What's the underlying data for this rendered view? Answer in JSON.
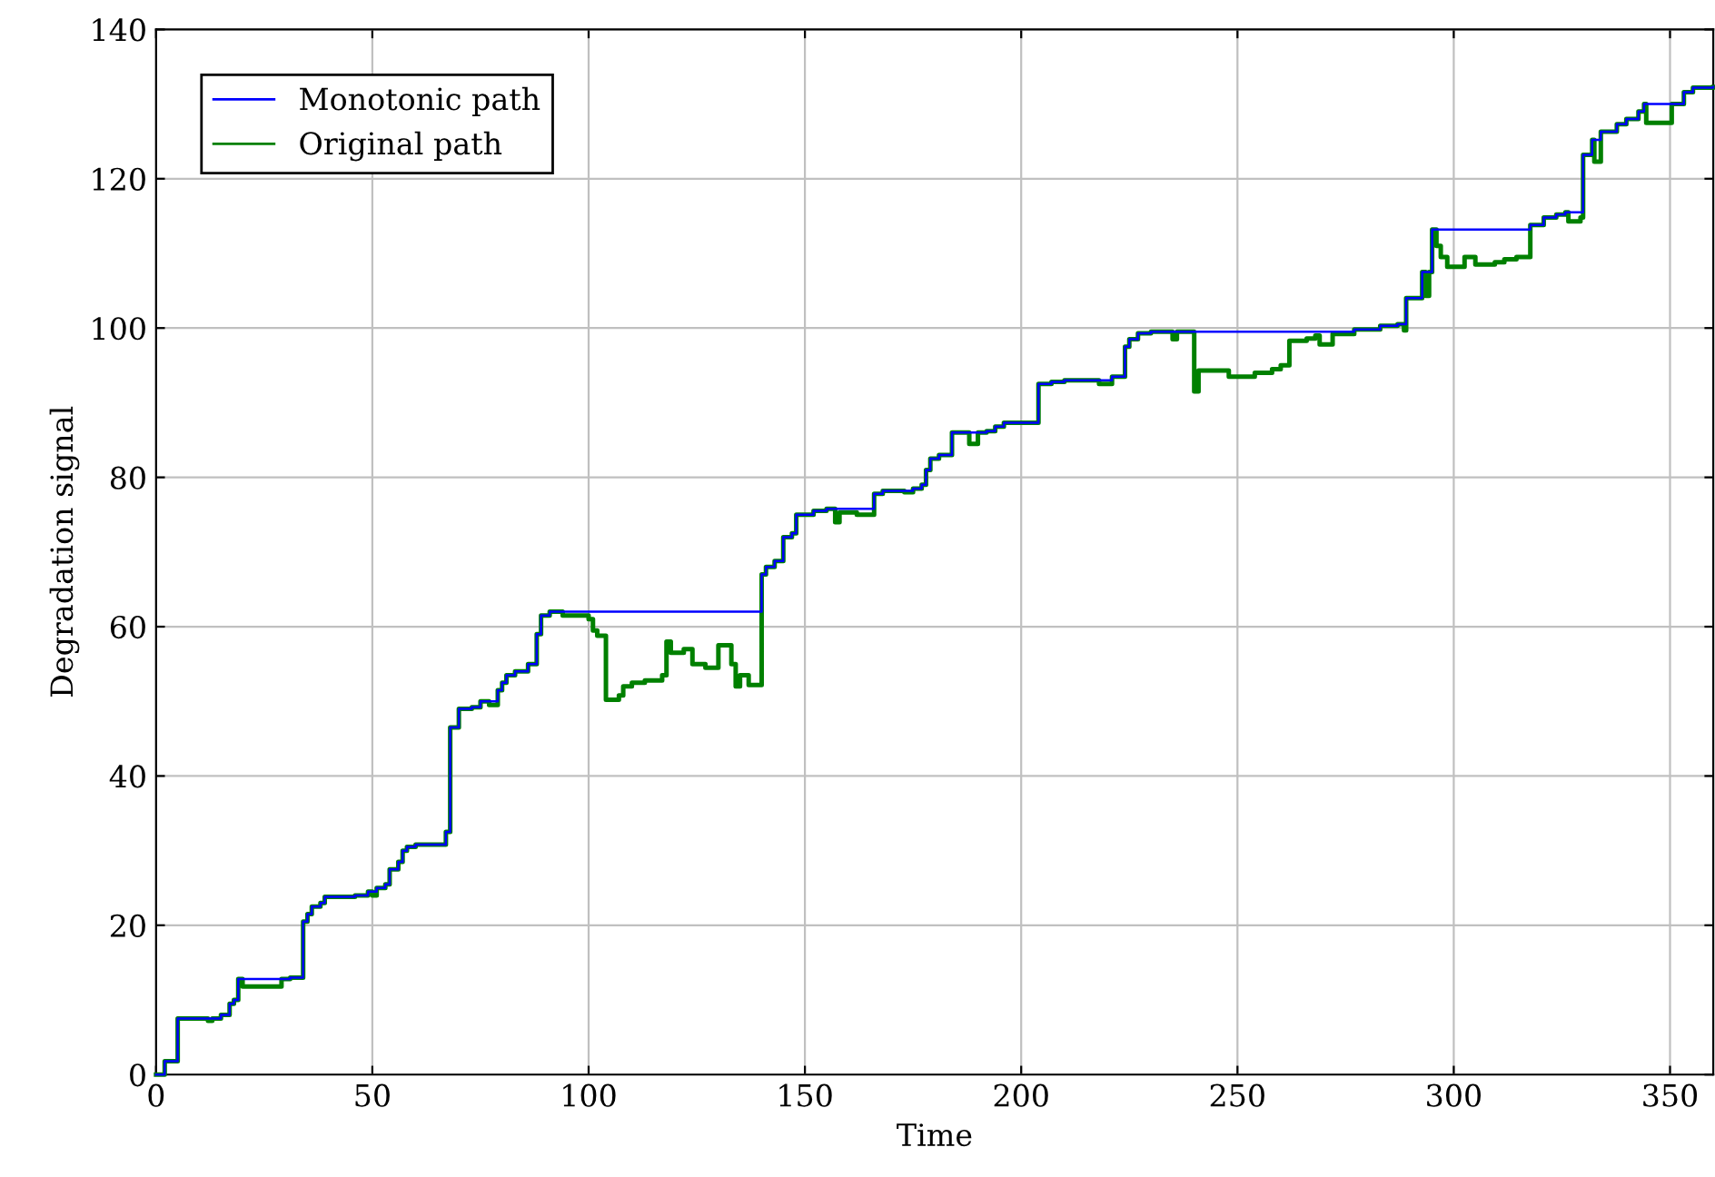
{
  "chart_data": {
    "type": "step",
    "xlabel": "Time",
    "ylabel": "Degradation signal",
    "xlim": [
      0,
      360
    ],
    "xticks": [
      0,
      50,
      100,
      150,
      200,
      250,
      300,
      350
    ],
    "ylim": [
      0,
      140
    ],
    "yticks": [
      0,
      20,
      40,
      60,
      80,
      100,
      120,
      140
    ],
    "grid": true,
    "legend": "top left",
    "series": [
      {
        "name": "Monotonic path",
        "color": "#0000ff",
        "x": [
          0,
          2,
          5,
          15,
          17,
          18,
          19,
          31,
          34,
          35,
          36,
          38,
          39,
          46,
          49,
          51,
          53,
          54,
          56,
          57,
          58,
          60,
          67,
          68,
          70,
          73,
          75,
          79,
          80,
          81,
          83,
          86,
          88,
          89,
          91,
          140,
          141,
          143,
          145,
          147,
          148,
          152,
          155,
          166,
          168,
          175,
          177,
          178,
          179,
          181,
          184,
          192,
          194,
          196,
          204,
          207,
          210,
          221,
          224,
          225,
          227,
          230,
          277,
          283,
          287,
          289,
          292.7,
          295,
          317.7,
          320.8,
          323.7,
          325.8,
          329.9,
          332,
          334,
          337.7,
          339.9,
          342.7,
          344,
          353.2,
          355.3,
          360
        ],
        "values": [
          0,
          1.8,
          7.5,
          8,
          9.5,
          10,
          12.8,
          13,
          20.5,
          21.5,
          22.5,
          23,
          23.8,
          24,
          24.5,
          25,
          25.5,
          27.5,
          28.5,
          30,
          30.5,
          30.8,
          32.5,
          46.5,
          49,
          49.2,
          50,
          51.5,
          52.5,
          53.5,
          54,
          55,
          59,
          61.5,
          62,
          67,
          68,
          68.8,
          72,
          72.5,
          75,
          75.5,
          75.8,
          77.8,
          78.2,
          78.5,
          79,
          81,
          82.5,
          83,
          86,
          86.2,
          86.8,
          87.3,
          92.5,
          92.8,
          93,
          93.5,
          97.5,
          98.5,
          99.3,
          99.5,
          99.8,
          100.3,
          100.5,
          104,
          107.5,
          113.2,
          113.8,
          114.8,
          115.2,
          115.5,
          123.2,
          125.2,
          126.3,
          127.3,
          128,
          129,
          130,
          131.6,
          132.2,
          132.3
        ]
      },
      {
        "name": "Original path",
        "color": "#008000",
        "x": [
          0,
          2,
          5,
          12,
          13,
          15,
          17,
          18,
          19,
          20,
          29,
          31,
          34,
          35,
          36,
          38,
          39,
          46,
          49,
          50,
          51,
          53,
          54,
          56,
          57,
          58,
          60,
          67,
          68,
          70,
          73,
          75,
          77,
          79,
          80,
          81,
          83,
          86,
          88,
          89,
          91,
          94,
          100,
          101,
          102,
          104,
          107,
          108,
          110,
          113,
          117,
          118,
          119,
          122,
          124,
          127,
          130,
          133,
          134,
          135,
          137,
          140,
          141,
          143,
          145,
          147,
          148,
          152,
          155,
          157,
          158,
          162,
          166,
          168,
          173,
          175,
          177,
          178,
          179,
          181,
          184,
          188,
          190,
          192,
          194,
          196,
          204,
          207,
          210,
          218,
          221,
          224,
          225,
          227,
          230,
          235,
          236,
          240,
          241,
          248,
          254,
          258,
          260,
          262,
          266,
          268,
          269,
          272,
          277,
          283,
          287,
          288.5,
          289,
          292.7,
          293.5,
          294.3,
          295,
          296,
          297,
          298.5,
          302.5,
          305,
          309.5,
          311.7,
          314.5,
          317.7,
          320.8,
          323.7,
          325.8,
          326.5,
          329.3,
          329.9,
          332,
          332.5,
          334,
          337.7,
          339.9,
          342.7,
          344,
          344.5,
          350.4,
          353.2,
          355.3,
          360
        ],
        "values": [
          0,
          1.8,
          7.5,
          7.2,
          7.5,
          8,
          9.5,
          10,
          12.8,
          11.8,
          12.8,
          13,
          20.5,
          21.5,
          22.5,
          23,
          23.8,
          24,
          24.5,
          24,
          25,
          25.5,
          27.5,
          28.5,
          30,
          30.5,
          30.8,
          32.5,
          46.5,
          49,
          49.2,
          50,
          49.5,
          51.5,
          52.5,
          53.5,
          54,
          55,
          59,
          61.5,
          62,
          61.5,
          61,
          59.5,
          58.8,
          50.2,
          50.8,
          52,
          52.5,
          52.8,
          53.5,
          58,
          56.5,
          57,
          55,
          54.5,
          57.5,
          55,
          52,
          53.5,
          52.2,
          67,
          68,
          68.8,
          72,
          72.5,
          75,
          75.5,
          75.8,
          74,
          75.3,
          75,
          77.8,
          78.2,
          78,
          78.5,
          79,
          81,
          82.5,
          83,
          86,
          84.5,
          86,
          86.2,
          86.8,
          87.3,
          92.5,
          92.8,
          93,
          92.5,
          93.5,
          97.5,
          98.5,
          99.3,
          99.5,
          98.5,
          99.5,
          91.5,
          94.3,
          93.5,
          94,
          94.5,
          95,
          98.3,
          98.6,
          99,
          97.8,
          99.2,
          99.8,
          100.3,
          100.5,
          99.7,
          104,
          107.5,
          104.3,
          107.5,
          113.2,
          111,
          109.5,
          108.2,
          109.5,
          108.5,
          108.8,
          109.2,
          109.5,
          113.8,
          114.8,
          115.2,
          115.5,
          114.3,
          114.8,
          123.2,
          125.2,
          122.3,
          126.3,
          127.3,
          128,
          129,
          130,
          127.5,
          130,
          131.6,
          132.2,
          132.3
        ]
      }
    ]
  }
}
